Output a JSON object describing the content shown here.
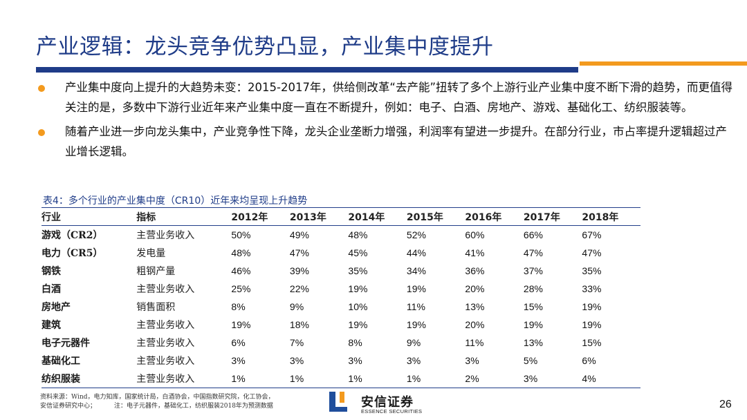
{
  "title": "产业逻辑：龙头竞争优势凸显，产业集中度提升",
  "bullets": [
    "产业集中度向上提升的大趋势未变：2015-2017年，供给侧改革“去产能”扭转了多个上游行业产业集中度不断下滑的趋势，而更值得关注的是，多数中下游行业近年来产业集中度一直在不断提升，例如：电子、白酒、房地产、游戏、基础化工、纺织服装等。",
    "随着产业进一步向龙头集中，产业竞争性下降，龙头企业垄断力增强，利润率有望进一步提升。在部分行业，市占率提升逻辑超过产业增长逻辑。"
  ],
  "table": {
    "caption": "表4：多个行业的产业集中度（CR10）近年来均呈现上升趋势",
    "headers": [
      "行业",
      "指标",
      "2012年",
      "2013年",
      "2014年",
      "2015年",
      "2016年",
      "2017年",
      "2018年"
    ],
    "rows": [
      [
        "游戏（CR2）",
        "主营业务收入",
        "50%",
        "49%",
        "48%",
        "52%",
        "60%",
        "66%",
        "67%"
      ],
      [
        "电力（CR5）",
        "发电量",
        "48%",
        "47%",
        "45%",
        "44%",
        "41%",
        "47%",
        "47%"
      ],
      [
        "钢铁",
        "粗钢产量",
        "46%",
        "39%",
        "35%",
        "34%",
        "36%",
        "37%",
        "35%"
      ],
      [
        "白酒",
        "主营业务收入",
        "25%",
        "22%",
        "19%",
        "19%",
        "20%",
        "28%",
        "33%"
      ],
      [
        "房地产",
        "销售面积",
        "8%",
        "9%",
        "10%",
        "11%",
        "13%",
        "15%",
        "19%"
      ],
      [
        "建筑",
        "主营业务收入",
        "19%",
        "18%",
        "19%",
        "19%",
        "20%",
        "19%",
        "19%"
      ],
      [
        "电子元器件",
        "主营业务收入",
        "6%",
        "7%",
        "8%",
        "9%",
        "11%",
        "13%",
        "15%"
      ],
      [
        "基础化工",
        "主营业务收入",
        "3%",
        "3%",
        "3%",
        "3%",
        "3%",
        "5%",
        "6%"
      ],
      [
        "纺织服装",
        "主营业务收入",
        "1%",
        "1%",
        "1%",
        "1%",
        "2%",
        "3%",
        "4%"
      ]
    ]
  },
  "source": {
    "line1": "资料来源：Wind，电力知库，国家统计局，白酒协会，中国指数研究院，化工协会，",
    "line2_a": "安信证券研究中心；",
    "line2_b": "注：电子元器件，基础化工，纺织服装2018年为预测数据"
  },
  "logo": {
    "name_cn": "安信证券",
    "name_en": "ESSENCE SECURITIES",
    "icon": "essence-logo-icon"
  },
  "page_number": "26",
  "colors": {
    "title": "#1f3c88",
    "accent": "#f39a1e",
    "logo_blue": "#1f4e9c",
    "logo_orange": "#f39a1e"
  }
}
